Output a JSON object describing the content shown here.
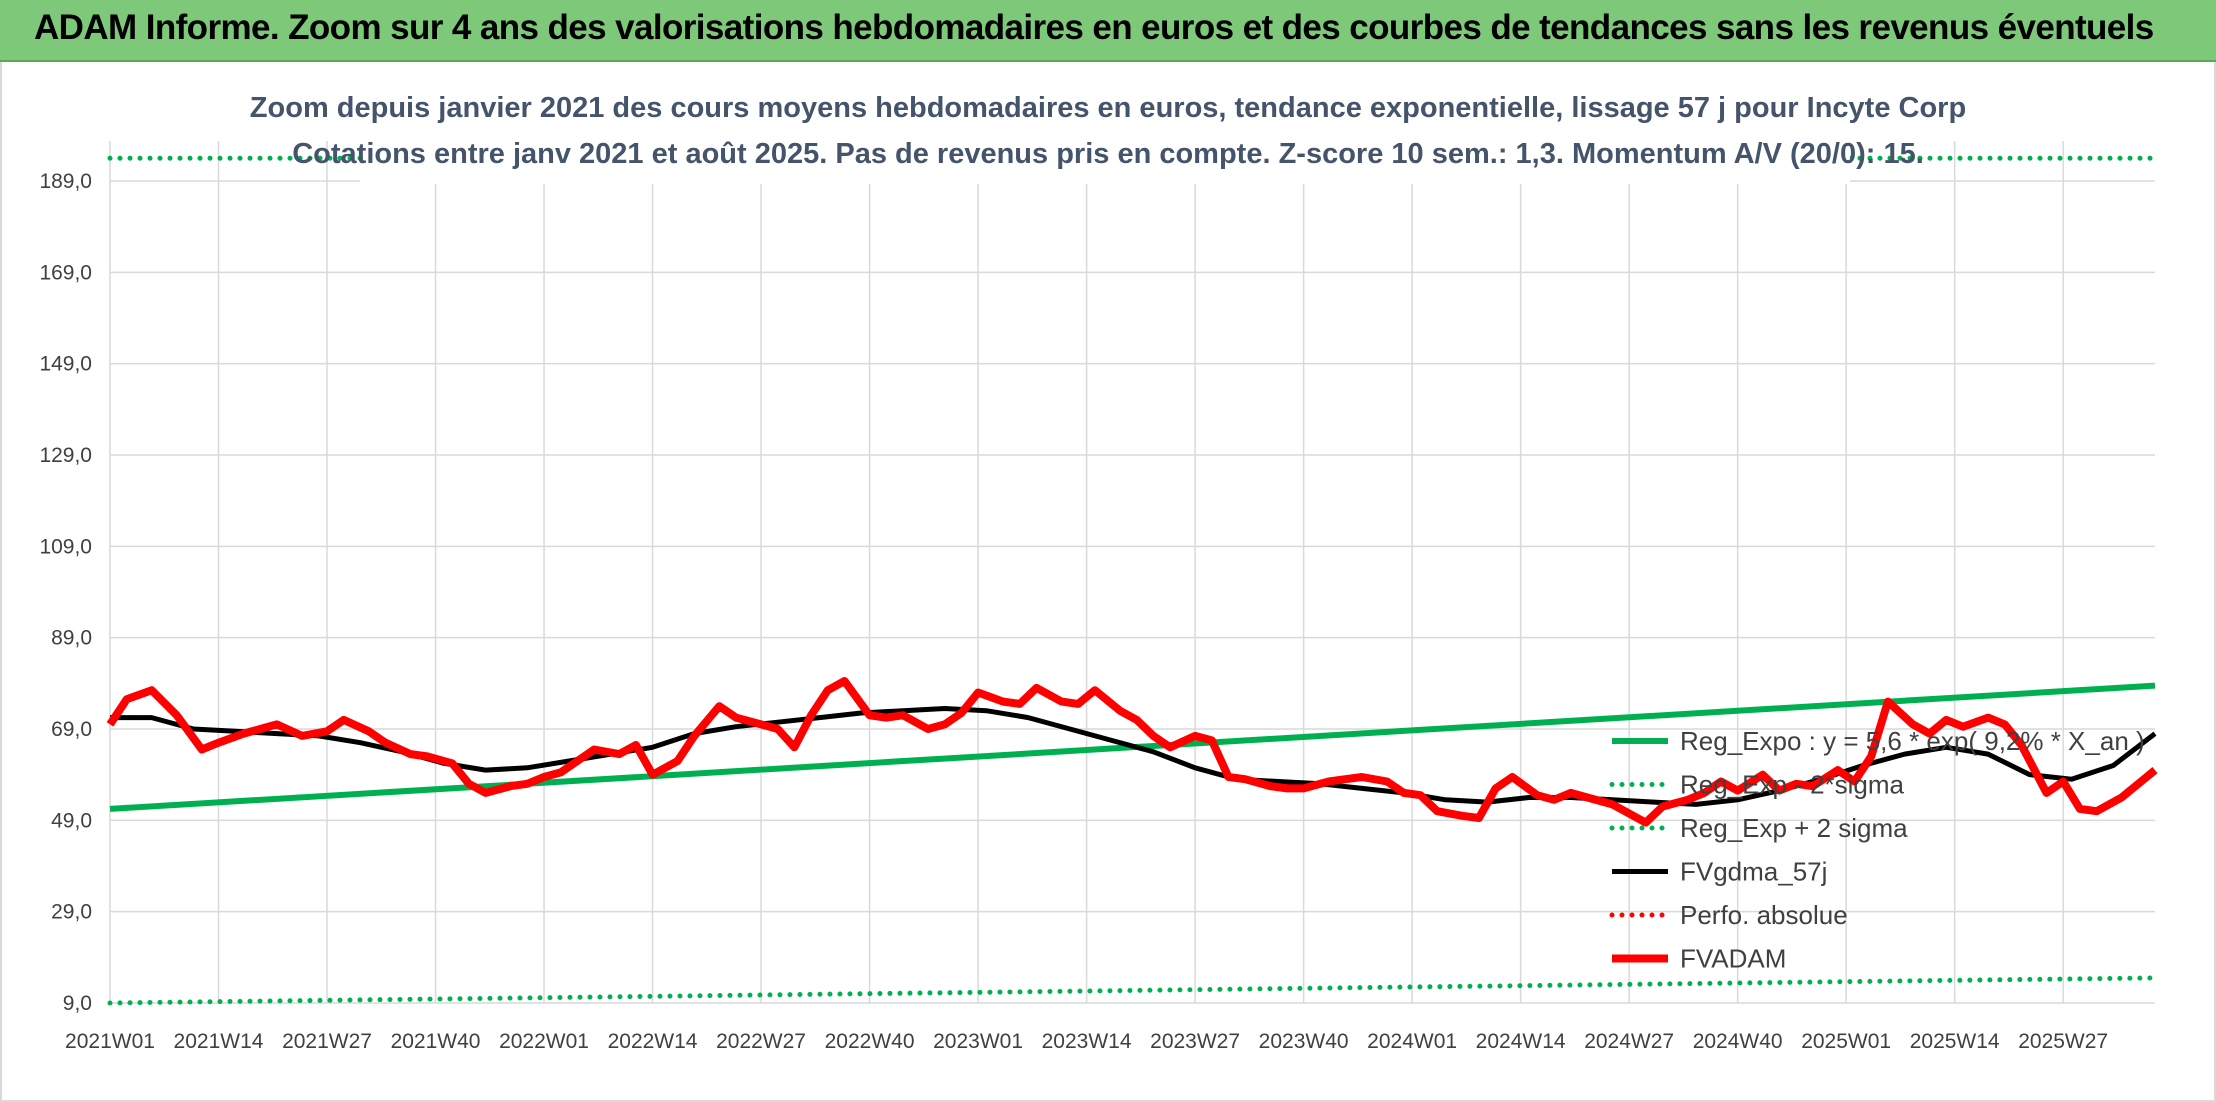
{
  "banner": {
    "title": "ADAM Informe. Zoom sur 4 ans des valorisations hebdomadaires en euros et des courbes de tendances sans les revenus éventuels"
  },
  "colors": {
    "banner": "#7dc879",
    "reg_exp": "#00b050",
    "fvgdma": "#000000",
    "fvadam": "#ff0000",
    "perfo": "#ff0000",
    "subtitle": "#44546a"
  },
  "chart_data": {
    "type": "line",
    "title_line1": "Zoom depuis janvier 2021 des cours moyens hebdomadaires en euros, tendance exponentielle, lissage 57 j pour Incyte Corp",
    "title_line2": "Cotations entre janv 2021 et août 2025. Pas de revenus pris en compte. Z-score 10 sem.: 1,3. Momentum A/V (20/0): 15.",
    "ylim": [
      9.0,
      199.0
    ],
    "y_ticks": [
      "189,0",
      "169,0",
      "149,0",
      "129,0",
      "109,0",
      "89,0",
      "69,0",
      "49,0",
      "29,0",
      "9,0"
    ],
    "y_tick_values": [
      189,
      169,
      149,
      129,
      109,
      89,
      69,
      49,
      29,
      9
    ],
    "x_ticks": [
      "2021W01",
      "2021W14",
      "2021W27",
      "2021W40",
      "2022W01",
      "2022W14",
      "2022W27",
      "2022W40",
      "2023W01",
      "2023W14",
      "2023W27",
      "2023W40",
      "2024W01",
      "2024W14",
      "2024W27",
      "2024W40",
      "2025W01",
      "2025W14",
      "2025W27"
    ],
    "x_range_weeks": [
      0,
      245
    ],
    "grid": true,
    "legend_position": "right",
    "series": [
      {
        "name": "Reg_Expo : y = 5,6 * exp( 9,2% * X_an )",
        "style": "solid",
        "color": "#00b050",
        "x": [
          0,
          245
        ],
        "values": [
          51.5,
          78.5
        ]
      },
      {
        "name": "Reg_Exp - 2*sigma",
        "style": "dotted",
        "color": "#00b050",
        "x": [
          0,
          245
        ],
        "values": [
          9.0,
          14.5
        ]
      },
      {
        "name": "Reg_Exp + 2 sigma",
        "style": "dotted",
        "color": "#00b050",
        "x": [
          0,
          245
        ],
        "values": [
          194.0,
          194.0
        ]
      },
      {
        "name": "FVgdma_57j",
        "style": "solid",
        "color": "#000000",
        "x": [
          0,
          5,
          10,
          15,
          20,
          25,
          30,
          35,
          40,
          45,
          50,
          55,
          60,
          65,
          70,
          75,
          80,
          85,
          90,
          95,
          100,
          105,
          110,
          115,
          120,
          125,
          130,
          135,
          140,
          145,
          150,
          155,
          160,
          165,
          170,
          175,
          180,
          185,
          190,
          195,
          200,
          205,
          210,
          215,
          220,
          225,
          230,
          235,
          240,
          245
        ],
        "values": [
          71.5,
          71.5,
          69.0,
          68.5,
          68.0,
          67.5,
          66.0,
          64.0,
          61.5,
          60.0,
          60.5,
          62.0,
          63.5,
          65.0,
          68.0,
          69.5,
          70.5,
          71.5,
          72.5,
          73.0,
          73.5,
          73.0,
          71.5,
          69.0,
          66.5,
          64.0,
          60.5,
          58.0,
          57.5,
          57.0,
          56.0,
          55.0,
          53.5,
          53.0,
          54.0,
          54.0,
          53.5,
          53.0,
          52.5,
          53.5,
          55.5,
          58.0,
          61.0,
          63.5,
          65.0,
          63.5,
          59.0,
          58.0,
          61.0,
          68.0
        ]
      },
      {
        "name": "Perfo. absolue",
        "style": "dotted",
        "color": "#ff0000",
        "x": [],
        "values": []
      },
      {
        "name": "FVADAM",
        "style": "solid",
        "color": "#ff0000",
        "x": [
          0,
          2,
          5,
          8,
          11,
          13,
          16,
          18,
          20,
          23,
          26,
          28,
          31,
          33,
          36,
          38,
          41,
          43,
          45,
          48,
          50,
          52,
          54,
          56,
          58,
          61,
          63,
          65,
          68,
          70,
          73,
          75,
          78,
          80,
          82,
          84,
          86,
          88,
          91,
          93,
          95,
          98,
          100,
          102,
          104,
          107,
          109,
          111,
          114,
          116,
          118,
          121,
          123,
          125,
          127,
          130,
          132,
          134,
          136,
          139,
          141,
          143,
          146,
          148,
          150,
          153,
          155,
          157,
          159,
          162,
          164,
          166,
          168,
          171,
          173,
          175,
          177,
          180,
          182,
          184,
          186,
          189,
          191,
          193,
          195,
          198,
          200,
          202,
          204,
          207,
          209,
          211,
          213,
          216,
          218,
          220,
          222,
          225,
          227,
          229,
          232,
          234,
          236,
          238,
          241,
          243,
          245
        ],
        "values": [
          70.0,
          75.5,
          77.5,
          72.0,
          64.5,
          66.0,
          68.0,
          69.0,
          70.0,
          67.5,
          68.5,
          71.0,
          68.5,
          66.0,
          63.5,
          63.0,
          61.5,
          57.0,
          55.0,
          56.5,
          57.0,
          58.5,
          59.5,
          62.0,
          64.5,
          63.5,
          65.5,
          59.0,
          62.0,
          67.5,
          74.0,
          71.5,
          70.0,
          69.0,
          65.0,
          72.0,
          77.5,
          79.5,
          72.0,
          71.5,
          72.0,
          69.0,
          70.0,
          72.5,
          77.0,
          75.0,
          74.5,
          78.0,
          75.0,
          74.5,
          77.5,
          73.0,
          71.0,
          67.5,
          65.0,
          67.5,
          66.5,
          58.5,
          58.0,
          56.5,
          56.0,
          56.0,
          57.5,
          58.0,
          58.5,
          57.5,
          55.0,
          54.5,
          51.0,
          50.0,
          49.5,
          56.0,
          58.5,
          54.5,
          53.5,
          55.0,
          54.0,
          52.5,
          50.5,
          48.5,
          52.0,
          53.5,
          55.0,
          57.5,
          55.5,
          59.0,
          55.5,
          57.0,
          56.5,
          60.0,
          57.5,
          63.0,
          75.0,
          70.0,
          68.0,
          71.0,
          69.5,
          71.5,
          70.0,
          65.5,
          55.0,
          57.5,
          51.5,
          51.0,
          54.0,
          57.0,
          60.0
        ]
      }
    ]
  }
}
